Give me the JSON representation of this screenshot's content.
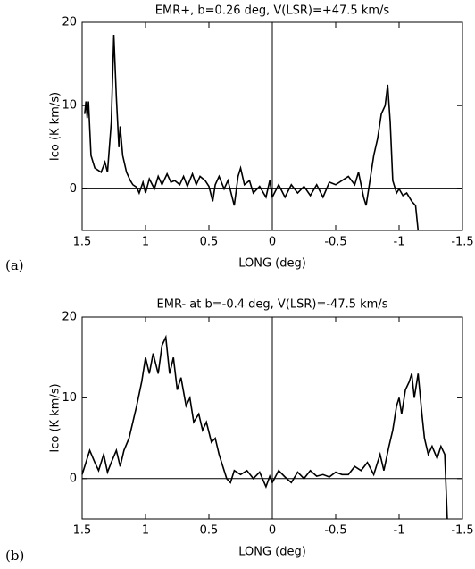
{
  "chart_data": [
    {
      "type": "line",
      "label": "(a)",
      "title": "EMR+, b=0.26 deg, V(LSR)=+47.5 km/s",
      "x_label": "LONG (deg)",
      "y_label": "Ico (K km/s)",
      "xlim": [
        1.5,
        -1.5
      ],
      "ylim": [
        -5,
        20
      ],
      "xticks": [
        1.5,
        1,
        0.5,
        0,
        -0.5,
        -1,
        -1.5
      ],
      "yticks": [
        0,
        10,
        20
      ],
      "series": [
        {
          "name": "Ico",
          "color": "#000000",
          "x": [
            1.48,
            1.47,
            1.46,
            1.45,
            1.43,
            1.4,
            1.35,
            1.32,
            1.3,
            1.27,
            1.25,
            1.23,
            1.21,
            1.2,
            1.18,
            1.15,
            1.12,
            1.1,
            1.07,
            1.05,
            1.02,
            1.0,
            0.97,
            0.93,
            0.9,
            0.87,
            0.83,
            0.8,
            0.77,
            0.73,
            0.7,
            0.67,
            0.63,
            0.6,
            0.57,
            0.53,
            0.5,
            0.47,
            0.45,
            0.42,
            0.38,
            0.35,
            0.3,
            0.27,
            0.25,
            0.22,
            0.18,
            0.15,
            0.1,
            0.05,
            0.02,
            0,
            -0.05,
            -0.1,
            -0.15,
            -0.2,
            -0.25,
            -0.3,
            -0.35,
            -0.4,
            -0.45,
            -0.5,
            -0.55,
            -0.6,
            -0.65,
            -0.68,
            -0.72,
            -0.74,
            -0.77,
            -0.8,
            -0.83,
            -0.86,
            -0.89,
            -0.91,
            -0.93,
            -0.95,
            -0.98,
            -1.0,
            -1.03,
            -1.06,
            -1.1,
            -1.13,
            -1.15
          ],
          "values": [
            9,
            10.5,
            8.5,
            10.5,
            4,
            2.5,
            2,
            3.2,
            2,
            8,
            18.5,
            11,
            5,
            7.5,
            4,
            2,
            1,
            0.5,
            0.2,
            -0.5,
            0.8,
            -0.5,
            1.2,
            0,
            1.5,
            0.5,
            1.8,
            0.8,
            1,
            0.5,
            1.5,
            0.3,
            1.8,
            0.5,
            1.5,
            1,
            0.3,
            -1.5,
            0.5,
            1.5,
            0,
            1,
            -2,
            1.5,
            2.5,
            0.5,
            1,
            -0.5,
            0.3,
            -1,
            1,
            -1,
            0.5,
            -1,
            0.5,
            -0.5,
            0.3,
            -0.8,
            0.5,
            -1,
            0.8,
            0.5,
            1,
            1.5,
            0.5,
            2,
            -1,
            -2,
            1,
            4,
            6,
            9,
            10,
            12.5,
            8,
            1,
            -0.5,
            0,
            -0.8,
            -0.5,
            -1.5,
            -2,
            -5
          ]
        }
      ]
    },
    {
      "type": "line",
      "label": "(b)",
      "title": "EMR- at b=-0.4 deg, V(LSR)=-47.5 km/s",
      "x_label": "LONG (deg)",
      "y_label": "Ico (K km/s)",
      "xlim": [
        1.5,
        -1.5
      ],
      "ylim": [
        -5,
        20
      ],
      "xticks": [
        1.5,
        1,
        0.5,
        0,
        -0.5,
        -1,
        -1.5
      ],
      "yticks": [
        0,
        10,
        20
      ],
      "series": [
        {
          "name": "Ico",
          "color": "#000000",
          "x": [
            1.5,
            1.47,
            1.44,
            1.4,
            1.37,
            1.33,
            1.3,
            1.27,
            1.23,
            1.2,
            1.17,
            1.13,
            1.1,
            1.07,
            1.03,
            1.0,
            0.97,
            0.94,
            0.9,
            0.87,
            0.84,
            0.81,
            0.78,
            0.75,
            0.72,
            0.68,
            0.65,
            0.62,
            0.58,
            0.55,
            0.52,
            0.48,
            0.45,
            0.42,
            0.39,
            0.36,
            0.33,
            0.3,
            0.25,
            0.2,
            0.15,
            0.1,
            0.05,
            0.02,
            0,
            -0.05,
            -0.1,
            -0.15,
            -0.2,
            -0.25,
            -0.3,
            -0.35,
            -0.4,
            -0.45,
            -0.5,
            -0.55,
            -0.6,
            -0.65,
            -0.7,
            -0.75,
            -0.8,
            -0.85,
            -0.88,
            -0.92,
            -0.95,
            -0.98,
            -1.0,
            -1.02,
            -1.05,
            -1.08,
            -1.1,
            -1.12,
            -1.15,
            -1.18,
            -1.2,
            -1.23,
            -1.26,
            -1.3,
            -1.33,
            -1.36,
            -1.38
          ],
          "values": [
            0.5,
            2,
            3.5,
            2,
            1,
            3,
            0.8,
            2,
            3.5,
            1.5,
            3.5,
            5,
            7,
            9,
            12,
            15,
            13,
            15.5,
            13,
            16.5,
            17.5,
            13,
            15,
            11,
            12.5,
            9,
            10,
            7,
            8,
            6,
            7,
            4.5,
            5,
            3,
            1.5,
            0,
            -0.5,
            1,
            0.5,
            1,
            0,
            0.8,
            -1,
            0.3,
            -0.5,
            1,
            0.2,
            -0.5,
            0.8,
            0,
            1,
            0.3,
            0.5,
            0.2,
            0.8,
            0.5,
            0.5,
            1.5,
            1,
            2,
            0.5,
            3,
            1,
            4,
            6,
            9,
            10,
            8,
            11,
            12,
            13,
            10,
            13,
            8,
            5,
            3,
            4,
            2.5,
            4,
            3,
            -5
          ]
        }
      ]
    }
  ]
}
